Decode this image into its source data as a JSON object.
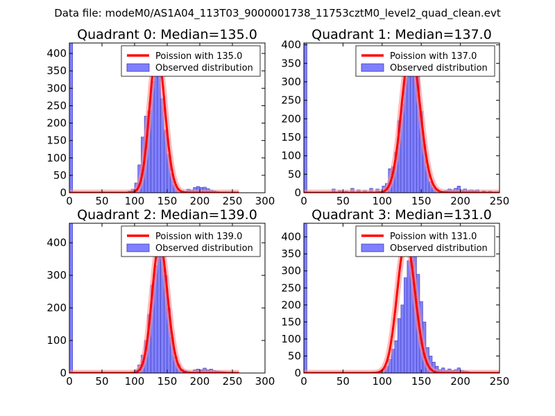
{
  "figure": {
    "suptitle": "Data file: modeM0/AS1A04_113T03_9000001738_11753cztM0_level2_quad_clean.evt"
  },
  "colors": {
    "bar_fill": "#8080ff",
    "bar_edge": "#3a3ab0",
    "poisson": "#ff0000",
    "poisson_glow": "#ff9090",
    "axes": "#000000"
  },
  "chart_data": [
    {
      "type": "bar",
      "title": "Quadrant 0: Median=135.0",
      "median": 135.0,
      "xlim": [
        0,
        300
      ],
      "ylim": [
        0,
        430
      ],
      "xticks": [
        0,
        50,
        100,
        150,
        200,
        250,
        300
      ],
      "yticks": [
        0,
        50,
        100,
        150,
        200,
        250,
        300,
        350,
        400
      ],
      "legend": [
        "Poission with 135.0",
        "Observed distribution"
      ],
      "legend_loc": "upper right",
      "bin_width": 5,
      "bins": [
        [
          0,
          430
        ],
        [
          85,
          2
        ],
        [
          90,
          5
        ],
        [
          95,
          10
        ],
        [
          100,
          28
        ],
        [
          105,
          80
        ],
        [
          110,
          160
        ],
        [
          115,
          220
        ],
        [
          120,
          235
        ],
        [
          125,
          320
        ],
        [
          130,
          410
        ],
        [
          135,
          375
        ],
        [
          140,
          270
        ],
        [
          145,
          180
        ],
        [
          150,
          110
        ],
        [
          155,
          55
        ],
        [
          160,
          22
        ],
        [
          165,
          10
        ],
        [
          170,
          6
        ],
        [
          175,
          4
        ],
        [
          180,
          10
        ],
        [
          185,
          8
        ],
        [
          190,
          15
        ],
        [
          195,
          18
        ],
        [
          200,
          15
        ],
        [
          205,
          16
        ],
        [
          210,
          12
        ],
        [
          215,
          8
        ],
        [
          220,
          5
        ],
        [
          225,
          3
        ]
      ]
    },
    {
      "type": "bar",
      "title": "Quadrant 1: Median=137.0",
      "median": 137.0,
      "xlim": [
        0,
        250
      ],
      "ylim": [
        0,
        405
      ],
      "xticks": [
        0,
        50,
        100,
        150,
        200,
        250
      ],
      "yticks": [
        0,
        50,
        100,
        150,
        200,
        250,
        300,
        350,
        400
      ],
      "legend": [
        "Poission with 137.0",
        "Observed distribution"
      ],
      "legend_loc": "upper right",
      "bin_width": 4,
      "bins": [
        [
          0,
          405
        ],
        [
          36,
          10
        ],
        [
          44,
          6
        ],
        [
          52,
          4
        ],
        [
          60,
          12
        ],
        [
          68,
          8
        ],
        [
          76,
          6
        ],
        [
          84,
          12
        ],
        [
          92,
          10
        ],
        [
          100,
          18
        ],
        [
          104,
          25
        ],
        [
          108,
          65
        ],
        [
          112,
          70
        ],
        [
          116,
          110
        ],
        [
          120,
          195
        ],
        [
          124,
          240
        ],
        [
          128,
          310
        ],
        [
          132,
          370
        ],
        [
          136,
          390
        ],
        [
          140,
          370
        ],
        [
          144,
          320
        ],
        [
          148,
          220
        ],
        [
          152,
          130
        ],
        [
          156,
          70
        ],
        [
          160,
          30
        ],
        [
          164,
          15
        ],
        [
          168,
          10
        ],
        [
          172,
          5
        ],
        [
          176,
          4
        ],
        [
          180,
          6
        ],
        [
          184,
          10
        ],
        [
          188,
          8
        ],
        [
          192,
          12
        ],
        [
          196,
          18
        ],
        [
          200,
          8
        ],
        [
          204,
          10
        ],
        [
          208,
          6
        ],
        [
          212,
          8
        ],
        [
          216,
          6
        ],
        [
          220,
          8
        ],
        [
          228,
          5
        ],
        [
          236,
          4
        ]
      ]
    },
    {
      "type": "bar",
      "title": "Quadrant 2: Median=139.0",
      "median": 139.0,
      "xlim": [
        0,
        300
      ],
      "ylim": [
        0,
        460
      ],
      "xticks": [
        0,
        50,
        100,
        150,
        200,
        250,
        300
      ],
      "yticks": [
        0,
        100,
        200,
        300,
        400
      ],
      "legend": [
        "Poission with 139.0",
        "Observed distribution"
      ],
      "legend_loc": "upper right",
      "bin_width": 5,
      "bins": [
        [
          0,
          460
        ],
        [
          100,
          10
        ],
        [
          105,
          25
        ],
        [
          110,
          55
        ],
        [
          115,
          100
        ],
        [
          120,
          180
        ],
        [
          125,
          270
        ],
        [
          130,
          330
        ],
        [
          135,
          400
        ],
        [
          140,
          370
        ],
        [
          145,
          300
        ],
        [
          150,
          200
        ],
        [
          155,
          110
        ],
        [
          160,
          50
        ],
        [
          165,
          25
        ],
        [
          170,
          12
        ],
        [
          175,
          8
        ],
        [
          180,
          5
        ],
        [
          185,
          4
        ],
        [
          190,
          10
        ],
        [
          195,
          12
        ],
        [
          200,
          10
        ],
        [
          205,
          15
        ],
        [
          210,
          10
        ],
        [
          215,
          12
        ],
        [
          220,
          8
        ],
        [
          225,
          6
        ],
        [
          230,
          5
        ],
        [
          235,
          4
        ],
        [
          240,
          3
        ],
        [
          245,
          3
        ],
        [
          250,
          2
        ],
        [
          255,
          2
        ]
      ]
    },
    {
      "type": "bar",
      "title": "Quadrant 3: Median=131.0",
      "median": 131.0,
      "xlim": [
        0,
        250
      ],
      "ylim": [
        0,
        440
      ],
      "xticks": [
        0,
        50,
        100,
        150,
        200,
        250
      ],
      "yticks": [
        0,
        50,
        100,
        150,
        200,
        250,
        300,
        350,
        400
      ],
      "legend": [
        "Poission with 131.0",
        "Observed distribution"
      ],
      "legend_loc": "upper right",
      "bin_width": 4,
      "bins": [
        [
          0,
          440
        ],
        [
          88,
          2
        ],
        [
          92,
          4
        ],
        [
          96,
          6
        ],
        [
          100,
          12
        ],
        [
          104,
          20
        ],
        [
          108,
          40
        ],
        [
          112,
          70
        ],
        [
          116,
          95
        ],
        [
          120,
          160
        ],
        [
          124,
          200
        ],
        [
          128,
          280
        ],
        [
          132,
          330
        ],
        [
          136,
          390
        ],
        [
          140,
          350
        ],
        [
          144,
          290
        ],
        [
          148,
          210
        ],
        [
          152,
          150
        ],
        [
          156,
          75
        ],
        [
          160,
          50
        ],
        [
          164,
          32
        ],
        [
          168,
          20
        ],
        [
          172,
          10
        ],
        [
          176,
          15
        ],
        [
          180,
          8
        ],
        [
          184,
          12
        ],
        [
          188,
          8
        ],
        [
          192,
          10
        ],
        [
          196,
          15
        ],
        [
          200,
          8
        ],
        [
          204,
          6
        ],
        [
          208,
          4
        ]
      ]
    }
  ]
}
